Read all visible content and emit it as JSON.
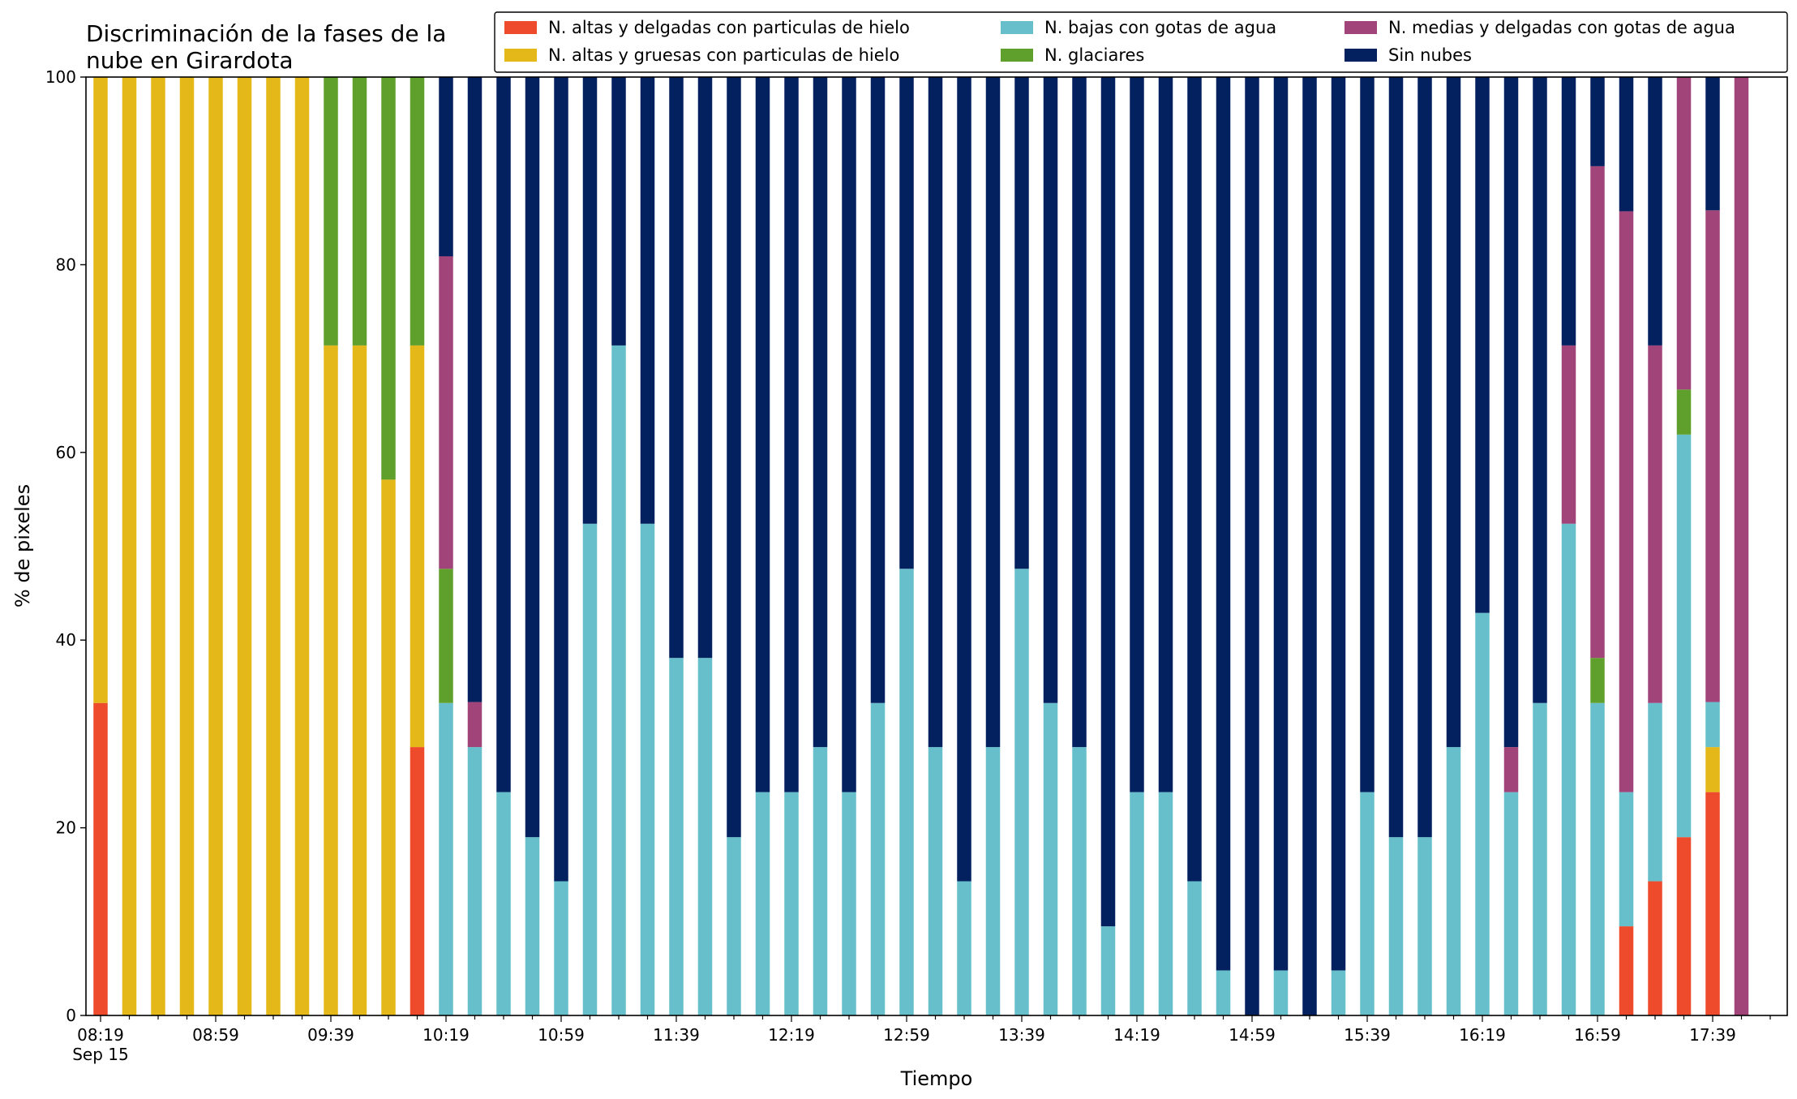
{
  "chart_data": {
    "type": "bar",
    "stacked": true,
    "title_lines": [
      "Discriminación de la fases de la",
      "nube en Girardota"
    ],
    "xlabel": "Tiempo",
    "ylabel": "% de pixeles",
    "ylim": [
      0,
      100
    ],
    "yticks": [
      "0",
      "20",
      "40",
      "60",
      "80",
      "100"
    ],
    "grid": false,
    "legend_position": "top-right",
    "x_tick_labels": [
      "08:19",
      "08:59",
      "09:39",
      "10:19",
      "10:59",
      "11:39",
      "12:19",
      "12:59",
      "13:39",
      "14:19",
      "14:59",
      "15:39",
      "16:19",
      "16:59",
      "17:39"
    ],
    "x_tick_sublabel": "Sep 15",
    "categories": [
      "08:19",
      "08:29",
      "08:39",
      "08:49",
      "08:59",
      "09:09",
      "09:19",
      "09:29",
      "09:39",
      "09:49",
      "09:59",
      "10:09",
      "10:19",
      "10:29",
      "10:39",
      "10:49",
      "10:59",
      "11:09",
      "11:19",
      "11:29",
      "11:39",
      "11:49",
      "11:59",
      "12:09",
      "12:19",
      "12:29",
      "12:39",
      "12:49",
      "12:59",
      "13:09",
      "13:19",
      "13:29",
      "13:39",
      "13:49",
      "13:59",
      "14:09",
      "14:19",
      "14:29",
      "14:39",
      "14:49",
      "14:59",
      "15:09",
      "15:19",
      "15:29",
      "15:39",
      "15:49",
      "15:59",
      "16:09",
      "16:19",
      "16:29",
      "16:39",
      "16:49",
      "16:59",
      "17:09",
      "17:19",
      "17:29",
      "17:39",
      "17:49"
    ],
    "series": [
      {
        "name": "N. altas y delgadas con particulas de hielo",
        "color": "#ee4a2c",
        "values": [
          33.3,
          0,
          0,
          0,
          0,
          0,
          0,
          0,
          0,
          0,
          0,
          28.6,
          0,
          0,
          0,
          0,
          0,
          0,
          0,
          0,
          0,
          0,
          0,
          0,
          0,
          0,
          0,
          0,
          0,
          0,
          0,
          0,
          0,
          0,
          0,
          0,
          0,
          0,
          0,
          0,
          0,
          0,
          0,
          0,
          0,
          0,
          0,
          0,
          0,
          0,
          0,
          0,
          0,
          9.5,
          14.3,
          19.0,
          23.8,
          0
        ]
      },
      {
        "name": "N. altas y gruesas con particulas de hielo",
        "color": "#e4b819",
        "values": [
          66.7,
          100,
          100,
          100,
          100,
          100,
          100,
          100,
          71.4,
          71.4,
          57.1,
          42.8,
          0,
          0,
          0,
          0,
          0,
          0,
          0,
          0,
          0,
          0,
          0,
          0,
          0,
          0,
          0,
          0,
          0,
          0,
          0,
          0,
          0,
          0,
          0,
          0,
          0,
          0,
          0,
          0,
          0,
          0,
          0,
          0,
          0,
          0,
          0,
          0,
          0,
          0,
          0,
          0,
          0,
          0,
          0,
          0,
          4.8,
          0
        ]
      },
      {
        "name": "N. bajas con gotas de agua",
        "color": "#67bfcb",
        "values": [
          0,
          0,
          0,
          0,
          0,
          0,
          0,
          0,
          0,
          0,
          0,
          0,
          33.3,
          28.6,
          23.8,
          19.0,
          14.3,
          52.4,
          71.4,
          52.4,
          38.1,
          38.1,
          19.0,
          23.8,
          23.8,
          28.6,
          23.8,
          33.3,
          47.6,
          28.6,
          14.3,
          28.6,
          47.6,
          33.3,
          28.6,
          9.5,
          23.8,
          23.8,
          14.3,
          4.8,
          0,
          4.8,
          0,
          4.8,
          23.8,
          19.0,
          19.0,
          28.6,
          42.9,
          23.8,
          33.3,
          52.4,
          33.3,
          14.3,
          19.0,
          42.9,
          4.8,
          0
        ]
      },
      {
        "name": "N. glaciares",
        "color": "#5f9f2c",
        "values": [
          0,
          0,
          0,
          0,
          0,
          0,
          0,
          0,
          28.6,
          28.6,
          42.9,
          28.6,
          14.3,
          0,
          0,
          0,
          0,
          0,
          0,
          0,
          0,
          0,
          0,
          0,
          0,
          0,
          0,
          0,
          0,
          0,
          0,
          0,
          0,
          0,
          0,
          0,
          0,
          0,
          0,
          0,
          0,
          0,
          0,
          0,
          0,
          0,
          0,
          0,
          0,
          0,
          0,
          0,
          4.8,
          0,
          0,
          4.8,
          0,
          0
        ]
      },
      {
        "name": "N. medias y delgadas con gotas de agua",
        "color": "#a0447a",
        "values": [
          0,
          0,
          0,
          0,
          0,
          0,
          0,
          0,
          0,
          0,
          0,
          0,
          33.3,
          4.8,
          0,
          0,
          0,
          0,
          0,
          0,
          0,
          0,
          0,
          0,
          0,
          0,
          0,
          0,
          0,
          0,
          0,
          0,
          0,
          0,
          0,
          0,
          0,
          0,
          0,
          0,
          0,
          0,
          0,
          0,
          0,
          0,
          0,
          0,
          0,
          4.8,
          0,
          19.0,
          52.4,
          61.9,
          38.1,
          33.3,
          52.4,
          100
        ]
      },
      {
        "name": "Sin nubes",
        "color": "#03215f",
        "values": [
          0,
          0,
          0,
          0,
          0,
          0,
          0,
          0,
          0,
          0,
          0,
          0,
          19.1,
          66.6,
          76.2,
          81.0,
          85.7,
          47.6,
          28.6,
          47.6,
          61.9,
          61.9,
          81.0,
          76.2,
          76.2,
          71.4,
          76.2,
          66.7,
          52.4,
          71.4,
          85.7,
          71.4,
          52.4,
          66.7,
          71.4,
          90.5,
          76.2,
          76.2,
          85.7,
          95.2,
          100,
          95.2,
          100,
          95.2,
          76.2,
          81.0,
          81.0,
          71.4,
          57.1,
          71.4,
          66.7,
          28.6,
          9.5,
          14.3,
          28.6,
          0,
          14.3,
          0
        ]
      }
    ]
  }
}
